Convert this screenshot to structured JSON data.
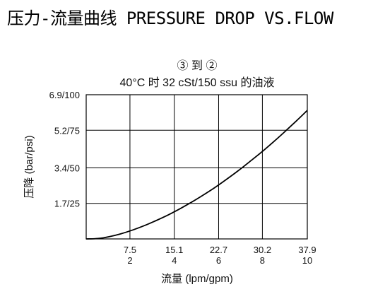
{
  "page": {
    "title": "压力-流量曲线 PRESSURE DROP VS.FLOW"
  },
  "chart_data": {
    "type": "line",
    "title": "③ 到 ②",
    "subtitle": "40°C 时 32 cSt/150 ssu 的油液",
    "xlabel": "流量 (lpm/gpm)",
    "ylabel": "压降 (bar/psi)",
    "x_ticks": [
      {
        "value": 7.5,
        "lpm": "7.5",
        "gpm": "2"
      },
      {
        "value": 15.1,
        "lpm": "15.1",
        "gpm": "4"
      },
      {
        "value": 22.7,
        "lpm": "22.7",
        "gpm": "6"
      },
      {
        "value": 30.2,
        "lpm": "30.2",
        "gpm": "8"
      },
      {
        "value": 37.9,
        "lpm": "37.9",
        "gpm": "10"
      }
    ],
    "y_ticks": [
      {
        "value": 1.7,
        "label": "1.7/25"
      },
      {
        "value": 3.4,
        "label": "3.4/50"
      },
      {
        "value": 5.2,
        "label": "5.2/75"
      },
      {
        "value": 6.9,
        "label": "6.9/100"
      }
    ],
    "xlim": [
      0,
      37.9
    ],
    "ylim": [
      0,
      6.9
    ],
    "grid": true,
    "series": [
      {
        "x": [
          0,
          2,
          4,
          6,
          8,
          10,
          12,
          14,
          16,
          18,
          20,
          22,
          24,
          26,
          28,
          30,
          32,
          34,
          36,
          37.9
        ],
        "y": [
          0,
          0.02,
          0.11,
          0.25,
          0.43,
          0.64,
          0.88,
          1.14,
          1.43,
          1.75,
          2.09,
          2.45,
          2.84,
          3.25,
          3.69,
          4.14,
          4.62,
          5.12,
          5.64,
          6.15
        ]
      }
    ],
    "colors": {
      "line": "#000000",
      "grid": "#000000"
    }
  }
}
